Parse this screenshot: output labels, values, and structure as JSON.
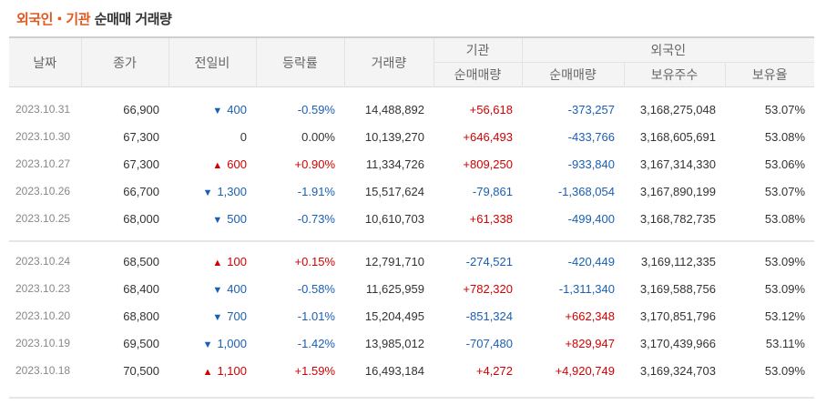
{
  "title": {
    "part1": "외국인",
    "dot": "・",
    "part2": "기관",
    "part3": "순매매 거래량"
  },
  "headers": {
    "date": "날짜",
    "close": "종가",
    "change": "전일비",
    "rate": "등락률",
    "volume": "거래량",
    "inst_group": "기관",
    "inst_net": "순매매량",
    "foreign_group": "외국인",
    "foreign_net": "순매매량",
    "foreign_hold": "보유주수",
    "foreign_ratio": "보유율"
  },
  "rows1": [
    {
      "date": "2023.10.31",
      "close": "66,900",
      "dir": "down",
      "arrow": "▼",
      "change": "400",
      "rate": "-0.59%",
      "volume": "14,488,892",
      "inst": "+56,618",
      "foreign": "-373,257",
      "hold": "3,168,275,048",
      "ratio": "53.07%"
    },
    {
      "date": "2023.10.30",
      "close": "67,300",
      "dir": "none",
      "arrow": "",
      "change": "0",
      "rate": "0.00%",
      "volume": "10,139,270",
      "inst": "+646,493",
      "foreign": "-433,766",
      "hold": "3,168,605,691",
      "ratio": "53.08%"
    },
    {
      "date": "2023.10.27",
      "close": "67,300",
      "dir": "up",
      "arrow": "▲",
      "change": "600",
      "rate": "+0.90%",
      "volume": "11,334,726",
      "inst": "+809,250",
      "foreign": "-933,840",
      "hold": "3,167,314,330",
      "ratio": "53.06%"
    },
    {
      "date": "2023.10.26",
      "close": "66,700",
      "dir": "down",
      "arrow": "▼",
      "change": "1,300",
      "rate": "-1.91%",
      "volume": "15,517,624",
      "inst": "-79,861",
      "foreign": "-1,368,054",
      "hold": "3,167,890,199",
      "ratio": "53.07%"
    },
    {
      "date": "2023.10.25",
      "close": "68,000",
      "dir": "down",
      "arrow": "▼",
      "change": "500",
      "rate": "-0.73%",
      "volume": "10,610,703",
      "inst": "+61,338",
      "foreign": "-499,400",
      "hold": "3,168,782,735",
      "ratio": "53.08%"
    }
  ],
  "rows2": [
    {
      "date": "2023.10.24",
      "close": "68,500",
      "dir": "up",
      "arrow": "▲",
      "change": "100",
      "rate": "+0.15%",
      "volume": "12,791,710",
      "inst": "-274,521",
      "foreign": "-420,449",
      "hold": "3,169,112,335",
      "ratio": "53.09%"
    },
    {
      "date": "2023.10.23",
      "close": "68,400",
      "dir": "down",
      "arrow": "▼",
      "change": "400",
      "rate": "-0.58%",
      "volume": "11,625,959",
      "inst": "+782,320",
      "foreign": "-1,311,340",
      "hold": "3,169,588,756",
      "ratio": "53.09%"
    },
    {
      "date": "2023.10.20",
      "close": "68,800",
      "dir": "down",
      "arrow": "▼",
      "change": "700",
      "rate": "-1.01%",
      "volume": "15,204,495",
      "inst": "-851,324",
      "foreign": "+662,348",
      "hold": "3,170,851,796",
      "ratio": "53.12%"
    },
    {
      "date": "2023.10.19",
      "close": "69,500",
      "dir": "down",
      "arrow": "▼",
      "change": "1,000",
      "rate": "-1.42%",
      "volume": "13,985,012",
      "inst": "-707,480",
      "foreign": "+829,947",
      "hold": "3,170,439,966",
      "ratio": "53.11%"
    },
    {
      "date": "2023.10.18",
      "close": "70,500",
      "dir": "up",
      "arrow": "▲",
      "change": "1,100",
      "rate": "+1.59%",
      "volume": "16,493,184",
      "inst": "+4,272",
      "foreign": "+4,920,749",
      "hold": "3,169,324,703",
      "ratio": "53.09%"
    }
  ],
  "colors": {
    "up": "#d20000",
    "down": "#1a5fb4",
    "title_accent": "#e4561e"
  }
}
